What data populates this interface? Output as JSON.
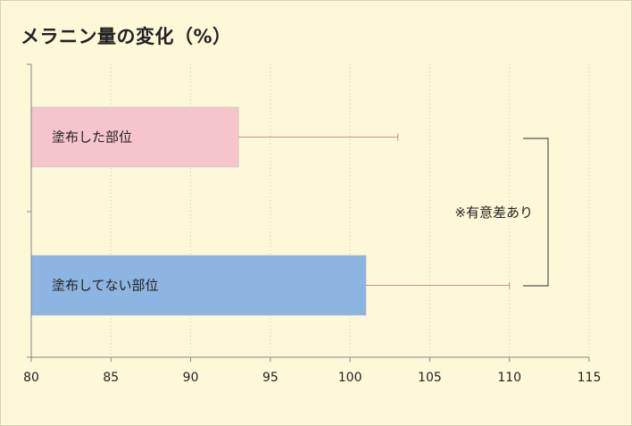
{
  "chart_data": {
    "type": "bar",
    "orientation": "horizontal",
    "title": "メラニン量の変化（%）",
    "categories": [
      "塗布した部位",
      "塗布してない部位"
    ],
    "values": [
      93,
      101
    ],
    "error_upper": [
      103,
      110
    ],
    "colors": [
      "#f5c4cd",
      "#8db5e2"
    ],
    "xlim": [
      80,
      115
    ],
    "xticks": [
      80,
      85,
      90,
      95,
      100,
      105,
      110,
      115
    ],
    "grid": "vertical-dotted",
    "annotation": "※有意差あり"
  }
}
